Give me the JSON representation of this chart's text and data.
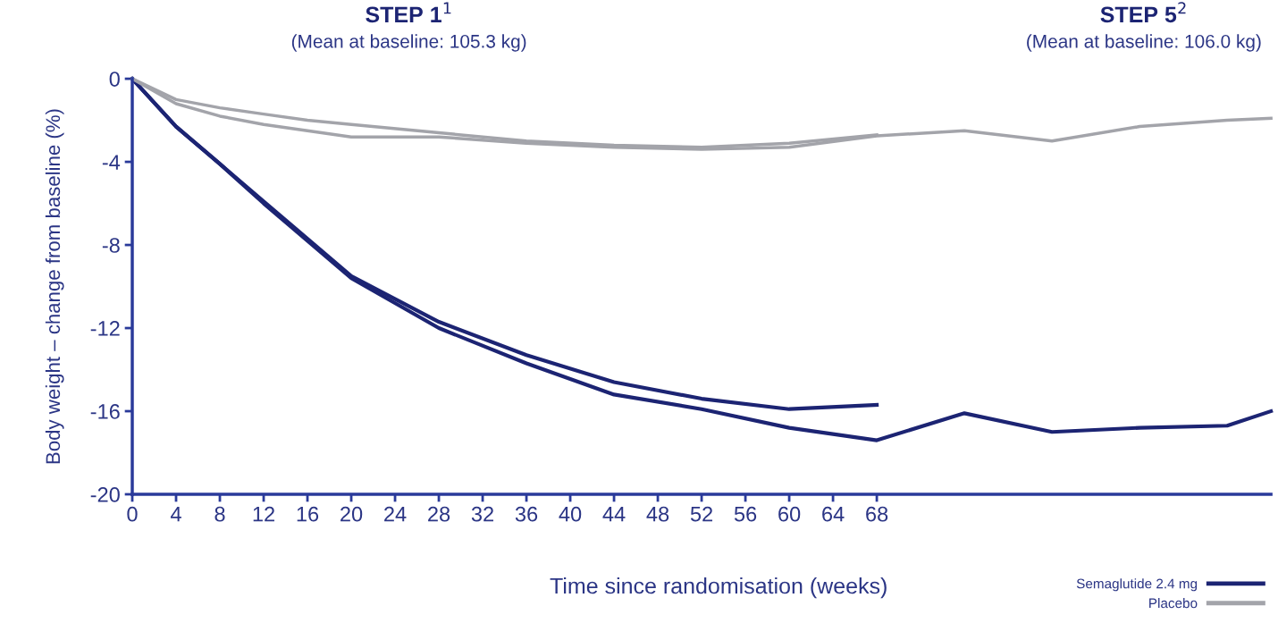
{
  "chart_data": {
    "type": "line",
    "xlabel": "Time since randomisation (weeks)",
    "ylabel": "Body weight – change from baseline (%)",
    "annotations": [
      "STEP 1$^{1}$",
      "(Mean at baseline: 105.3 kg)",
      "STEP 5$^{2}$",
      "(Mean at baseline: 106.0 kg)"
    ],
    "xlim": [
      0,
      104
    ],
    "ylim": [
      -20,
      0
    ],
    "xticks": [
      0,
      4,
      8,
      12,
      16,
      20,
      24,
      28,
      32,
      36,
      40,
      44,
      48,
      52,
      56,
      60,
      64,
      68
    ],
    "yticks": [
      0,
      -4,
      -8,
      -12,
      -16,
      -20
    ],
    "grid": false,
    "legend": "bottom right",
    "series": [
      {
        "name": "Semaglutide 2.4 mg",
        "color": "#1c2473",
        "x": [
          0,
          4,
          8,
          12,
          16,
          20,
          28,
          36,
          44,
          52,
          60,
          68
        ],
        "values": [
          0,
          -2.3,
          -4.1,
          -5.9,
          -7.7,
          -9.5,
          -11.7,
          -13.3,
          -14.6,
          -15.4,
          -15.9,
          -15.7
        ]
      },
      {
        "name": "Placebo",
        "color": "#a3a4aa",
        "x": [
          0,
          4,
          8,
          12,
          16,
          20,
          28,
          36,
          44,
          52,
          60,
          68
        ],
        "values": [
          0,
          -1.0,
          -1.4,
          -1.7,
          -2.0,
          -2.2,
          -2.6,
          -3.0,
          -3.2,
          -3.3,
          -3.1,
          -2.7
        ]
      },
      {
        "color": "#1c2473",
        "x": [
          0,
          4,
          8,
          12,
          16,
          20,
          28,
          36,
          44,
          52,
          60,
          68,
          76,
          84,
          92,
          100,
          104
        ],
        "values": [
          0,
          -2.3,
          -4.1,
          -6.0,
          -7.8,
          -9.6,
          -12.0,
          -13.7,
          -15.2,
          -15.9,
          -16.8,
          -17.4,
          -16.1,
          -17.0,
          -16.8,
          -16.7,
          -16.0
        ]
      },
      {
        "color": "#a3a4aa",
        "x": [
          0,
          4,
          8,
          12,
          16,
          20,
          28,
          36,
          44,
          52,
          60,
          68,
          76,
          84,
          92,
          100,
          104
        ],
        "values": [
          0,
          -1.2,
          -1.8,
          -2.2,
          -2.5,
          -2.8,
          -2.8,
          -3.1,
          -3.3,
          -3.4,
          -3.3,
          -2.75,
          -2.5,
          -3.0,
          -2.3,
          -2.0,
          -1.9
        ]
      }
    ]
  }
}
